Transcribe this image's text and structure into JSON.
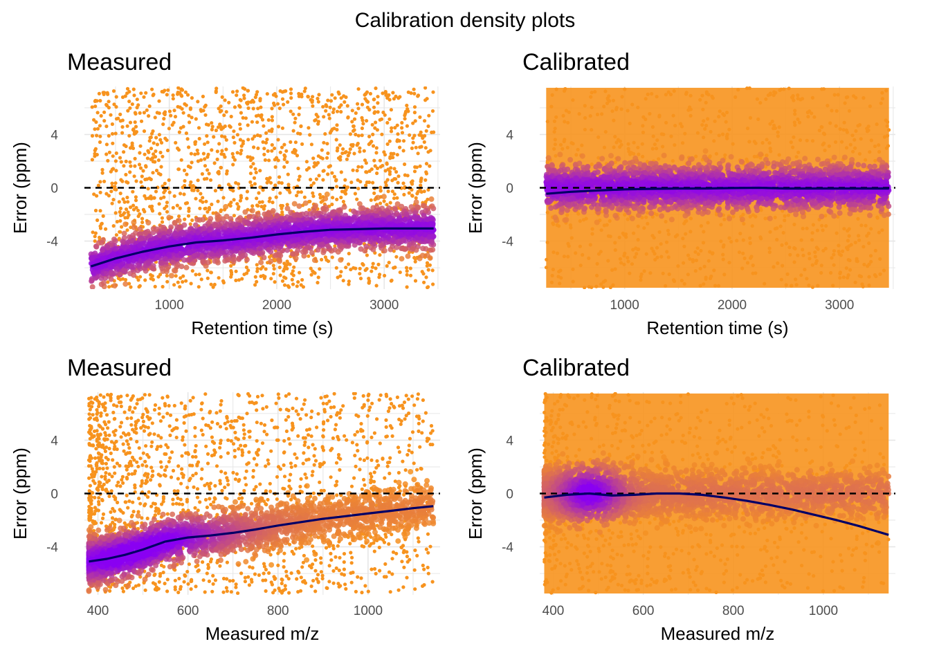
{
  "title": "Calibration density plots",
  "colors": {
    "low_density": "#f7931e",
    "high_density": "#8a00f2",
    "trend_line": "#000066",
    "zero_line": "#000000",
    "grid": "#e6e6e6"
  },
  "chart_data": [
    {
      "id": "rt-measured",
      "type": "scatter",
      "subtype": "density-colored scatter with smooth trend",
      "title": "Measured",
      "xlabel": "Retention time (s)",
      "ylabel": "Error (ppm)",
      "xlim": [
        210,
        3520
      ],
      "ylim": [
        -7.6,
        7.6
      ],
      "xticks": [
        1000,
        2000,
        3000
      ],
      "xtick_labels": [
        "1000",
        "2000",
        "3000"
      ],
      "yticks": [
        -4,
        0,
        4
      ],
      "ytick_labels": [
        "-4",
        "0",
        "4"
      ],
      "grid": true,
      "reference_line": {
        "y": 0,
        "style": "dashed"
      },
      "point_range": {
        "x": [
          270,
          3460
        ],
        "y": [
          -7.5,
          7.5
        ]
      },
      "dense_band": {
        "y_center": -3.3,
        "y_spread": 1.3
      },
      "trend": {
        "x": [
          270,
          500,
          750,
          1000,
          1250,
          1500,
          1750,
          2000,
          2250,
          2500,
          2750,
          3000,
          3250,
          3460
        ],
        "y": [
          -5.9,
          -5.3,
          -4.8,
          -4.4,
          -4.1,
          -3.95,
          -3.75,
          -3.5,
          -3.3,
          -3.15,
          -3.1,
          -3.05,
          -3.05,
          -3.05
        ]
      }
    },
    {
      "id": "rt-calibrated",
      "type": "scatter",
      "subtype": "density-colored scatter with smooth trend",
      "title": "Calibrated",
      "xlabel": "Retention time (s)",
      "ylabel": "Error (ppm)",
      "xlim": [
        210,
        3520
      ],
      "ylim": [
        -7.6,
        7.6
      ],
      "xticks": [
        1000,
        2000,
        3000
      ],
      "xtick_labels": [
        "1000",
        "2000",
        "3000"
      ],
      "yticks": [
        -4,
        0,
        4
      ],
      "ytick_labels": [
        "-4",
        "0",
        "4"
      ],
      "grid": true,
      "reference_line": {
        "y": 0,
        "style": "dashed"
      },
      "point_range": {
        "x": [
          270,
          3460
        ],
        "y": [
          -7.5,
          7.5
        ]
      },
      "dense_band": {
        "y_center": 0.0,
        "y_spread": 1.4
      },
      "trend": {
        "x": [
          270,
          500,
          750,
          1000,
          1250,
          1500,
          1750,
          2000,
          2250,
          2500,
          2750,
          3000,
          3250,
          3460
        ],
        "y": [
          -0.45,
          -0.3,
          -0.2,
          -0.12,
          -0.08,
          -0.05,
          -0.05,
          -0.02,
          0.0,
          -0.05,
          -0.05,
          -0.05,
          -0.05,
          -0.05
        ]
      }
    },
    {
      "id": "mz-measured",
      "type": "scatter",
      "subtype": "density-colored scatter with smooth trend",
      "title": "Measured",
      "xlabel": "Measured m/z",
      "ylabel": "Error (ppm)",
      "xlim": [
        370,
        1160
      ],
      "ylim": [
        -7.6,
        7.6
      ],
      "xticks": [
        400,
        600,
        800,
        1000
      ],
      "xtick_labels": [
        "400",
        "600",
        "800",
        "1000"
      ],
      "yticks": [
        -4,
        0,
        4
      ],
      "ytick_labels": [
        "-4",
        "0",
        "4"
      ],
      "grid": true,
      "reference_line": {
        "y": 0,
        "style": "dashed"
      },
      "point_range": {
        "x": [
          380,
          1145
        ],
        "y": [
          -7.5,
          7.5
        ]
      },
      "dense_band": {
        "y_center": -3.8,
        "y_spread": 1.4
      },
      "trend": {
        "x": [
          380,
          420,
          460,
          500,
          550,
          600,
          650,
          700,
          750,
          800,
          850,
          900,
          950,
          1000,
          1050,
          1100,
          1145
        ],
        "y": [
          -5.1,
          -4.9,
          -4.6,
          -4.2,
          -3.6,
          -3.3,
          -3.15,
          -2.95,
          -2.7,
          -2.4,
          -2.15,
          -1.9,
          -1.7,
          -1.5,
          -1.3,
          -1.1,
          -0.95
        ]
      }
    },
    {
      "id": "mz-calibrated",
      "type": "scatter",
      "subtype": "density-colored scatter with smooth trend",
      "title": "Calibrated",
      "xlabel": "Measured m/z",
      "ylabel": "Error (ppm)",
      "xlim": [
        370,
        1160
      ],
      "ylim": [
        -7.6,
        7.6
      ],
      "xticks": [
        400,
        600,
        800,
        1000
      ],
      "xtick_labels": [
        "400",
        "600",
        "800",
        "1000"
      ],
      "yticks": [
        -4,
        0,
        4
      ],
      "ytick_labels": [
        "-4",
        "0",
        "4"
      ],
      "grid": true,
      "reference_line": {
        "y": 0,
        "style": "dashed"
      },
      "point_range": {
        "x": [
          380,
          1145
        ],
        "y": [
          -7.5,
          7.5
        ]
      },
      "dense_band": {
        "y_center": 0.0,
        "y_spread": 1.6
      },
      "trend": {
        "x": [
          380,
          430,
          480,
          530,
          580,
          630,
          680,
          730,
          780,
          830,
          880,
          930,
          980,
          1030,
          1080,
          1145
        ],
        "y": [
          -0.3,
          -0.1,
          0.0,
          -0.15,
          -0.1,
          0.0,
          0.0,
          -0.1,
          -0.3,
          -0.55,
          -0.85,
          -1.2,
          -1.6,
          -2.0,
          -2.45,
          -3.1
        ]
      }
    }
  ]
}
